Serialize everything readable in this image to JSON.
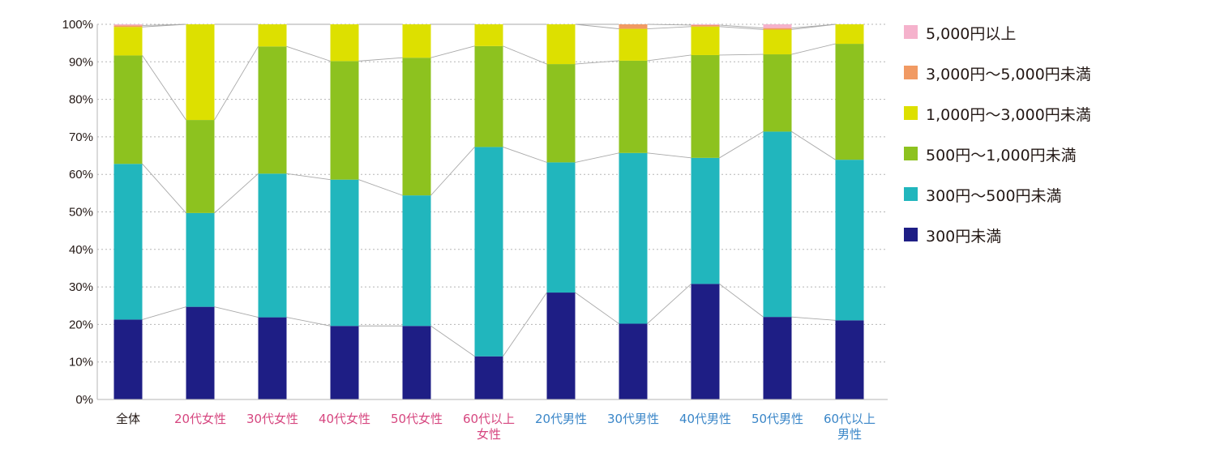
{
  "chart_data": {
    "type": "bar",
    "stacked": true,
    "percent": true,
    "ylim": [
      0,
      100
    ],
    "yticks": [
      "0%",
      "10%",
      "20%",
      "30%",
      "40%",
      "50%",
      "60%",
      "70%",
      "80%",
      "90%",
      "100%"
    ],
    "categories": [
      {
        "label": "全体",
        "lines": [
          "全体"
        ],
        "color": "#231815"
      },
      {
        "label": "20代女性",
        "lines": [
          "20代女性"
        ],
        "color": "#d6467f"
      },
      {
        "label": "30代女性",
        "lines": [
          "30代女性"
        ],
        "color": "#d6467f"
      },
      {
        "label": "40代女性",
        "lines": [
          "40代女性"
        ],
        "color": "#d6467f"
      },
      {
        "label": "50代女性",
        "lines": [
          "50代女性"
        ],
        "color": "#d6467f"
      },
      {
        "label": "60代以上女性",
        "lines": [
          "60代以上",
          "女性"
        ],
        "color": "#d6467f"
      },
      {
        "label": "20代男性",
        "lines": [
          "20代男性"
        ],
        "color": "#3a86c8"
      },
      {
        "label": "30代男性",
        "lines": [
          "30代男性"
        ],
        "color": "#3a86c8"
      },
      {
        "label": "40代男性",
        "lines": [
          "40代男性"
        ],
        "color": "#3a86c8"
      },
      {
        "label": "50代男性",
        "lines": [
          "50代男性"
        ],
        "color": "#3a86c8"
      },
      {
        "label": "60代以上男性",
        "lines": [
          "60代以上",
          "男性"
        ],
        "color": "#3a86c8"
      }
    ],
    "series": [
      {
        "name": "300円未満",
        "color": "#1e1e85",
        "values": [
          21.3,
          24.7,
          21.9,
          19.6,
          19.6,
          11.5,
          28.5,
          20.2,
          30.8,
          22.0,
          21.1
        ]
      },
      {
        "name": "300円～500円未満",
        "color": "#21b6bd",
        "values": [
          41.5,
          25.0,
          38.3,
          39.0,
          34.8,
          55.8,
          34.7,
          45.5,
          33.6,
          49.4,
          42.8
        ]
      },
      {
        "name": "500円～1,000円未満",
        "color": "#8dc21f",
        "values": [
          28.9,
          24.8,
          33.9,
          31.6,
          36.7,
          26.9,
          26.2,
          24.6,
          27.4,
          20.6,
          30.9
        ]
      },
      {
        "name": "1,000円～3,000円未満",
        "color": "#dde000",
        "values": [
          7.6,
          25.5,
          5.9,
          9.8,
          8.9,
          5.8,
          10.6,
          8.5,
          7.6,
          6.6,
          5.2
        ]
      },
      {
        "name": "3,000円～5,000円未満",
        "color": "#f19a63",
        "values": [
          0.4,
          0.0,
          0.0,
          0.0,
          0.0,
          0.0,
          0.0,
          1.2,
          0.4,
          0.4,
          0.0
        ]
      },
      {
        "name": "5,000円以上",
        "color": "#f5b2cc",
        "values": [
          0.3,
          0.0,
          0.0,
          0.0,
          0.0,
          0.0,
          0.0,
          0.0,
          0.2,
          1.0,
          0.0
        ]
      }
    ],
    "legend_order": [
      5,
      4,
      3,
      2,
      1,
      0
    ],
    "legend_position": "right",
    "grid": true,
    "connector_lines": true
  }
}
